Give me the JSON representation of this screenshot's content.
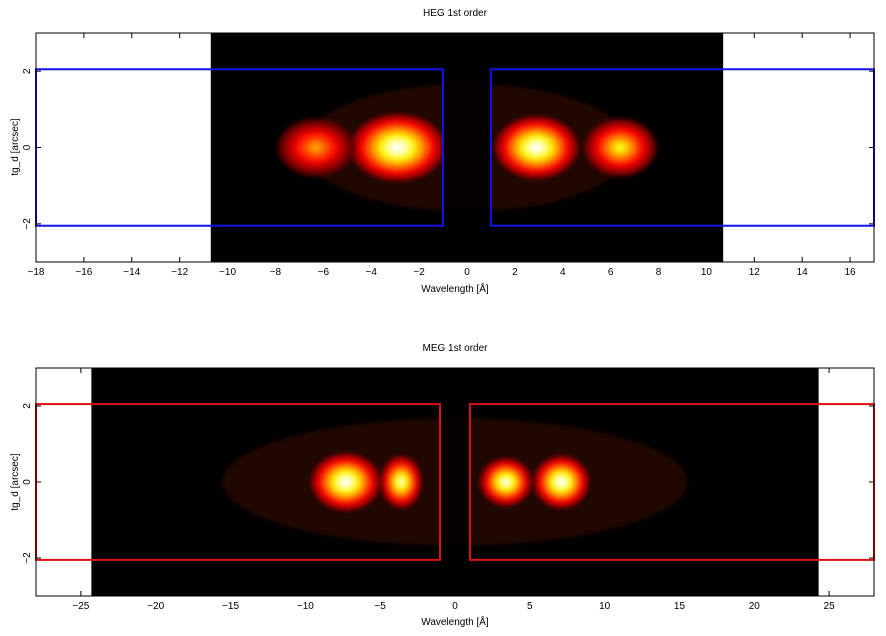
{
  "chart_data": [
    {
      "type": "heatmap",
      "title": "HEG 1st order",
      "xlabel": "Wavelength [Å]",
      "ylabel": "tg_d [arcsec]",
      "xlim": [
        -18,
        17
      ],
      "ylim": [
        -3,
        3
      ],
      "data_extent_x": [
        -10.7,
        10.7
      ],
      "xticks": [
        -18,
        -16,
        -14,
        -12,
        -10,
        -8,
        -6,
        -4,
        -2,
        0,
        2,
        4,
        6,
        8,
        10,
        12,
        14,
        16
      ],
      "yticks": [
        -2,
        0,
        2
      ],
      "grid": false,
      "colormap": "hot",
      "highlight_color": "#1111ee",
      "extraction_regions": [
        {
          "x": [
            -18,
            -1
          ],
          "y": [
            -2.05,
            2.05
          ]
        },
        {
          "x": [
            1,
            17
          ],
          "y": [
            -2.05,
            2.05
          ]
        }
      ],
      "blobs": [
        {
          "x": -2.9,
          "y": 0,
          "sx": 1.7,
          "sy": 0.7,
          "intensity": 1.0
        },
        {
          "x": -6.3,
          "y": 0,
          "sx": 1.4,
          "sy": 0.6,
          "intensity": 0.6
        },
        {
          "x": 2.9,
          "y": 0,
          "sx": 1.5,
          "sy": 0.65,
          "intensity": 1.0
        },
        {
          "x": 6.4,
          "y": 0,
          "sx": 1.3,
          "sy": 0.6,
          "intensity": 0.75
        }
      ]
    },
    {
      "type": "heatmap",
      "title": "MEG 1st order",
      "xlabel": "Wavelength [Å]",
      "ylabel": "tg_d [arcsec]",
      "xlim": [
        -28,
        28
      ],
      "ylim": [
        -3,
        3
      ],
      "data_extent_x": [
        -24.3,
        24.3
      ],
      "xticks": [
        -25,
        -20,
        -15,
        -10,
        -5,
        0,
        5,
        10,
        15,
        20,
        25
      ],
      "yticks": [
        -2,
        0,
        2
      ],
      "grid": false,
      "colormap": "hot",
      "highlight_color": "#dd1111",
      "extraction_regions": [
        {
          "x": [
            -28,
            -1
          ],
          "y": [
            -2.05,
            2.05
          ]
        },
        {
          "x": [
            1,
            28
          ],
          "y": [
            -2.05,
            2.05
          ]
        }
      ],
      "blobs": [
        {
          "x": -7.3,
          "y": 0,
          "sx": 2.0,
          "sy": 0.6,
          "intensity": 1.0
        },
        {
          "x": -3.6,
          "y": 0,
          "sx": 1.2,
          "sy": 0.55,
          "intensity": 0.9
        },
        {
          "x": 3.4,
          "y": 0,
          "sx": 1.5,
          "sy": 0.5,
          "intensity": 0.95
        },
        {
          "x": 7.1,
          "y": 0,
          "sx": 1.6,
          "sy": 0.55,
          "intensity": 1.0
        }
      ]
    }
  ]
}
